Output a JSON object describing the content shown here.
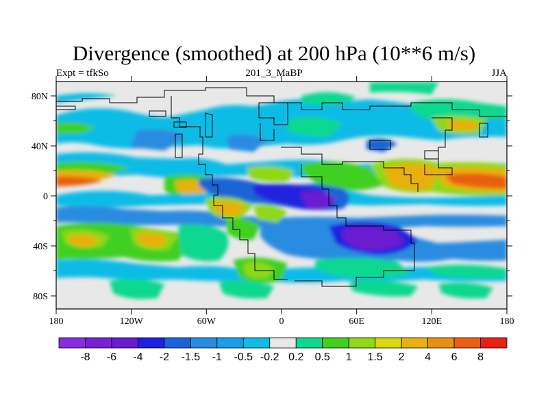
{
  "title": "Divergence (smoothed) at 200 hPa (10**6 m/s)",
  "subtitle_left": "Expt = tfkSo",
  "subtitle_center": "201_3_MaBP",
  "subtitle_right": "JJA",
  "x_ticks": [
    "180",
    "120W",
    "60W",
    "0",
    "60E",
    "120E",
    "180"
  ],
  "y_ticks": [
    "80N",
    "40N",
    "0",
    "40S",
    "80S"
  ],
  "colorbar": {
    "colors": [
      "#8a2be2",
      "#7a1fd6",
      "#6a1ad0",
      "#2020e0",
      "#1a64d8",
      "#2a8ce0",
      "#1aa0e6",
      "#10bce6",
      "#e8e8e8",
      "#10d890",
      "#40d020",
      "#90d818",
      "#d8d810",
      "#e8b010",
      "#e89010",
      "#e86010",
      "#e82010"
    ],
    "labels": [
      "-8",
      "-6",
      "-4",
      "-2",
      "-1.5",
      "-1",
      "-0.5",
      "-0.2",
      "0.2",
      "0.5",
      "1",
      "1.5",
      "2",
      "4",
      "6",
      "8"
    ]
  }
}
